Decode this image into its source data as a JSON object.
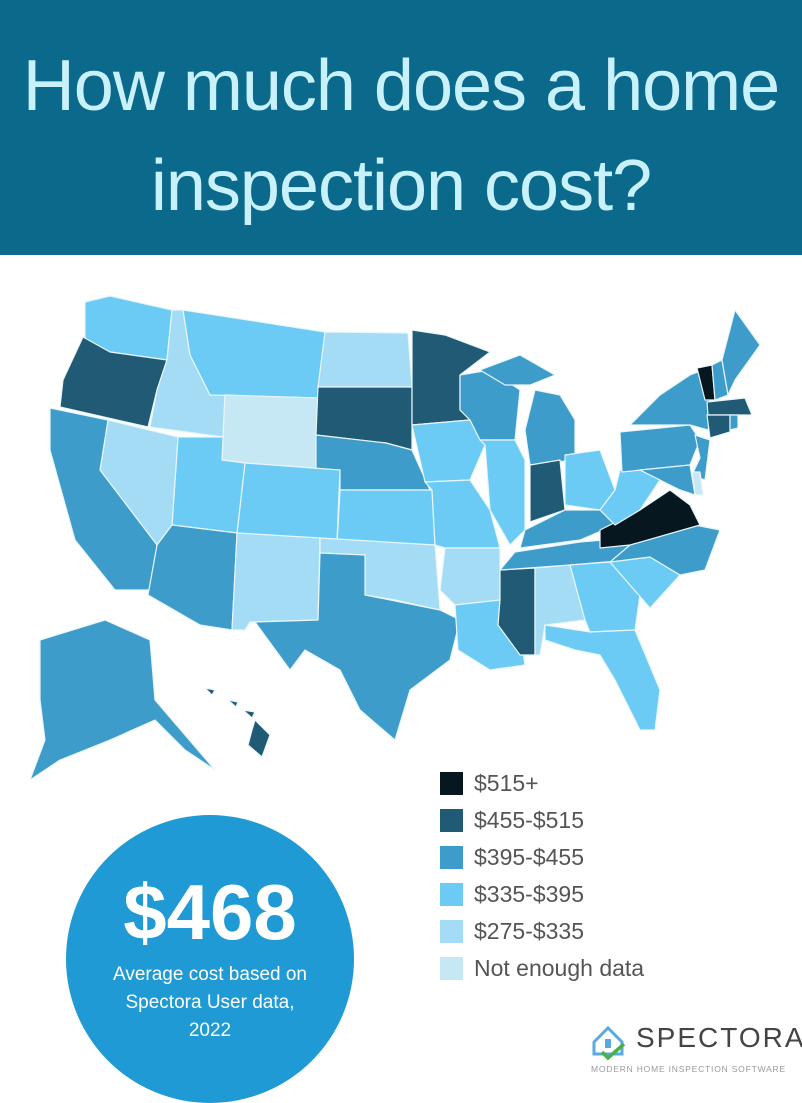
{
  "header": {
    "title_line1": "How much does a home",
    "title_line2": "inspection cost?"
  },
  "legend": [
    {
      "label": "$515+",
      "color": "#061720"
    },
    {
      "label": "$455-$515",
      "color": "#215a75"
    },
    {
      "label": "$395-$455",
      "color": "#3d9cc9"
    },
    {
      "label": "$335-$395",
      "color": "#6ccbf4"
    },
    {
      "label": "$275-$335",
      "color": "#a3dcf4"
    },
    {
      "label": "Not enough data",
      "color": "#c6e8f5"
    }
  ],
  "state_categories": {
    "VT": "$515+",
    "VA": "$515+",
    "OR": "$455-$515",
    "SD": "$455-$515",
    "MN": "$455-$515",
    "IN": "$455-$515",
    "MS": "$455-$515",
    "HI": "$455-$515",
    "MA": "$455-$515",
    "CT": "$455-$515",
    "CA": "$395-$455",
    "AZ": "$395-$455",
    "TX": "$395-$455",
    "NE": "$395-$455",
    "WI": "$395-$455",
    "MI": "$395-$455",
    "KY": "$395-$455",
    "TN": "$395-$455",
    "NC": "$395-$455",
    "NY": "$395-$455",
    "PA": "$395-$455",
    "NJ": "$395-$455",
    "ME": "$395-$455",
    "NH": "$395-$455",
    "AK": "$395-$455",
    "MD": "$395-$455",
    "RI": "$395-$455",
    "WA": "$335-$395",
    "MT": "$335-$395",
    "UT": "$335-$395",
    "CO": "$335-$395",
    "KS": "$335-$395",
    "IA": "$335-$395",
    "MO": "$335-$395",
    "IL": "$335-$395",
    "OH": "$335-$395",
    "WV": "$335-$395",
    "GA": "$335-$395",
    "SC": "$335-$395",
    "FL": "$335-$395",
    "LA": "$335-$395",
    "ID": "$275-$335",
    "NV": "$275-$335",
    "ND": "$275-$335",
    "NM": "$275-$335",
    "OK": "$275-$335",
    "AR": "$275-$335",
    "AL": "$275-$335",
    "WY": "Not enough data",
    "DE": "Not enough data"
  },
  "average": {
    "value": "$468",
    "caption_line1": "Average cost based on",
    "caption_line2": "Spectora User data,",
    "caption_line3": "2022"
  },
  "logo": {
    "name": "SPECTORA",
    "tagline": "MODERN HOME INSPECTION SOFTWARE"
  }
}
